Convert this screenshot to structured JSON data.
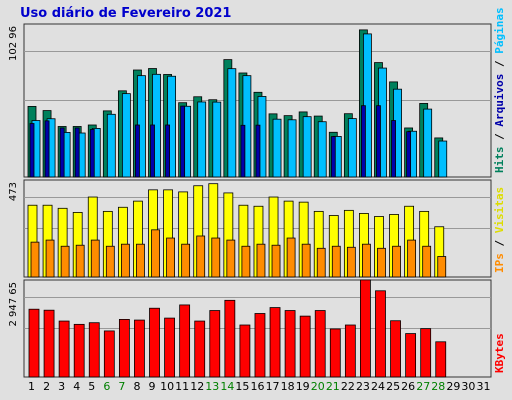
{
  "chart_data": [
    {
      "type": "bar",
      "title": "Uso diário de Fevereiro 2021",
      "categories": [
        "1",
        "2",
        "3",
        "4",
        "5",
        "6",
        "7",
        "8",
        "9",
        "10",
        "11",
        "12",
        "13",
        "14",
        "15",
        "16",
        "17",
        "18",
        "19",
        "20",
        "21",
        "22",
        "23",
        "24",
        "25",
        "26",
        "27",
        "28",
        "29",
        "30",
        "31"
      ],
      "weekend_days": [
        "6",
        "7",
        "13",
        "14",
        "20",
        "21",
        "27",
        "28"
      ],
      "ymax_label": "102 96",
      "ylim": [
        0,
        10296
      ],
      "side_labels": [
        "Hits",
        "Arquivos",
        "Páginas"
      ],
      "series": [
        {
          "name": "Hits",
          "color": "#00805c",
          "values": [
            4750,
            4470,
            3400,
            3400,
            3500,
            4450,
            5800,
            7200,
            7300,
            6900,
            5000,
            5400,
            5200,
            7900,
            7000,
            5700,
            4250,
            4130,
            4380,
            4100,
            3010,
            4260,
            9900,
            7700,
            6400,
            3300,
            4950,
            2630,
            0,
            0,
            0
          ]
        },
        {
          "name": "Páginas",
          "color": "#00bfff",
          "values": [
            3800,
            3920,
            3000,
            2960,
            3270,
            4220,
            5610,
            6820,
            6910,
            6780,
            4760,
            5050,
            5040,
            7290,
            6820,
            5420,
            3890,
            3850,
            4060,
            3720,
            2730,
            3930,
            9630,
            7330,
            5910,
            3080,
            4570,
            2420,
            0,
            0,
            0
          ]
        },
        {
          "name": "Arquivos",
          "color": "#0000aa",
          "values": [
            3600,
            3780,
            3300,
            3300,
            3200,
            0,
            0,
            3500,
            3500,
            3500,
            4770,
            0,
            0,
            0,
            3480,
            3490,
            0,
            0,
            0,
            0,
            2720,
            0,
            4800,
            4800,
            3800,
            3050,
            0,
            0,
            0,
            0,
            0
          ]
        }
      ]
    },
    {
      "type": "bar",
      "ymax_label": "473",
      "ylim": [
        0,
        473
      ],
      "side_labels": [
        "IPs",
        "Visitas"
      ],
      "series": [
        {
          "name": "Visitas",
          "color": "#ffff00",
          "values": [
            350,
            350,
            335,
            315,
            390,
            320,
            340,
            370,
            425,
            425,
            415,
            445,
            455,
            410,
            350,
            345,
            390,
            370,
            365,
            320,
            300,
            325,
            310,
            295,
            305,
            345,
            320,
            245,
            0,
            0,
            0
          ]
        },
        {
          "name": "IPs",
          "color": "#ff8c00",
          "values": [
            170,
            180,
            150,
            155,
            180,
            150,
            160,
            160,
            230,
            190,
            160,
            200,
            190,
            180,
            150,
            160,
            155,
            190,
            160,
            140,
            150,
            145,
            160,
            140,
            150,
            180,
            150,
            100,
            0,
            0,
            0
          ]
        }
      ]
    },
    {
      "type": "bar",
      "ymax_label": "2 947 65",
      "ylim": [
        0,
        294765
      ],
      "side_labels": [
        "KBytes"
      ],
      "series": [
        {
          "name": "KBytes",
          "color": "#ff0000",
          "values": [
            206000,
            203000,
            170000,
            160000,
            165000,
            140000,
            175000,
            173000,
            209000,
            179000,
            219000,
            170000,
            202000,
            233000,
            158000,
            193000,
            211000,
            202000,
            185000,
            202000,
            146000,
            158000,
            295000,
            262000,
            171000,
            132000,
            147000,
            107000,
            0,
            0,
            0
          ]
        }
      ]
    }
  ]
}
